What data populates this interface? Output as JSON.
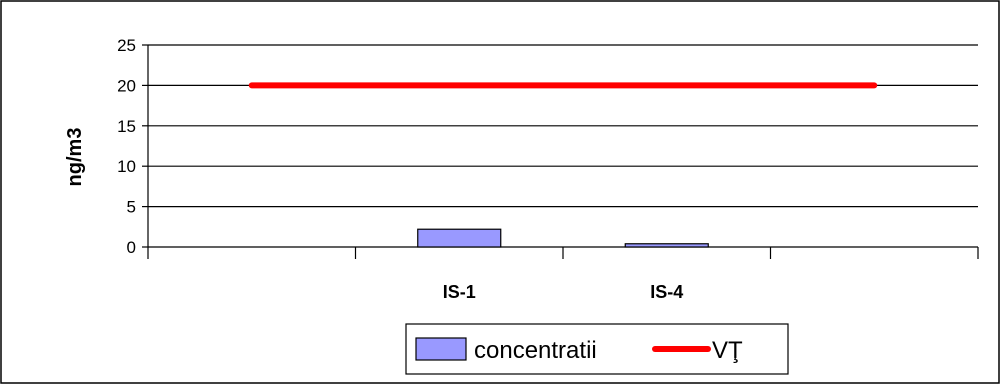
{
  "chart_data": {
    "type": "bar",
    "categories": [
      "",
      "IS-1",
      "IS-4",
      ""
    ],
    "series": [
      {
        "name": "concentratii",
        "type": "bar",
        "values": [
          null,
          2.2,
          0.4,
          null
        ],
        "color": "#9999ff"
      },
      {
        "name": "VŢ",
        "type": "line",
        "values": [
          20,
          20,
          20,
          20
        ],
        "color": "#ff0000"
      }
    ],
    "xlabel": "",
    "ylabel": "ng/m3",
    "ylim": [
      0,
      25
    ],
    "yticks": [
      0,
      5,
      10,
      15,
      20,
      25
    ],
    "grid": true,
    "legend_position": "bottom"
  }
}
